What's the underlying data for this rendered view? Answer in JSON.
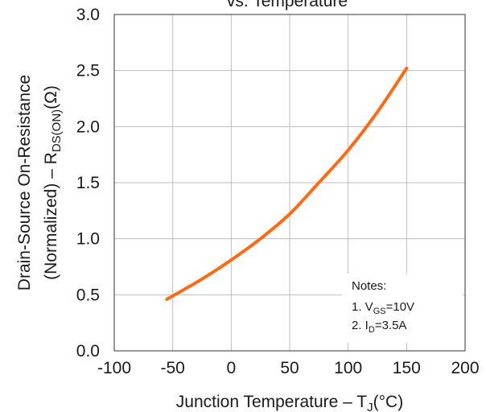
{
  "chart_data": {
    "type": "line",
    "title": "vs. Temperature",
    "xlabel": {
      "main": "Junction Temperature  –  T",
      "sub": "J",
      "unit": "(°C)"
    },
    "ylabel": {
      "line1": "Drain-Source On-Resistance",
      "line2_main": "(Normalized)  –  R",
      "line2_sub": "DS(ON)",
      "line2_unit": "(Ω)"
    },
    "xlim": [
      -100,
      200
    ],
    "ylim": [
      0.0,
      3.0
    ],
    "x_ticks": [
      "-100",
      "-50",
      "0",
      "50",
      "100",
      "150",
      "200"
    ],
    "y_ticks": [
      "0.0",
      "0.5",
      "1.0",
      "1.5",
      "2.0",
      "2.5",
      "3.0"
    ],
    "grid": true,
    "series": [
      {
        "color": "#ff6a13",
        "x": [
          -55,
          -25,
          0,
          25,
          50,
          75,
          100,
          125,
          150
        ],
        "y": [
          0.46,
          0.64,
          0.81,
          1.0,
          1.22,
          1.5,
          1.79,
          2.13,
          2.52
        ]
      }
    ],
    "annotations": {
      "title": "Notes:",
      "line1": {
        "prefix": "1. V",
        "sub": "GS",
        "suffix": "=10V"
      },
      "line2": {
        "prefix": "2. I",
        "sub": "D",
        "suffix": "=3.5A"
      }
    }
  }
}
